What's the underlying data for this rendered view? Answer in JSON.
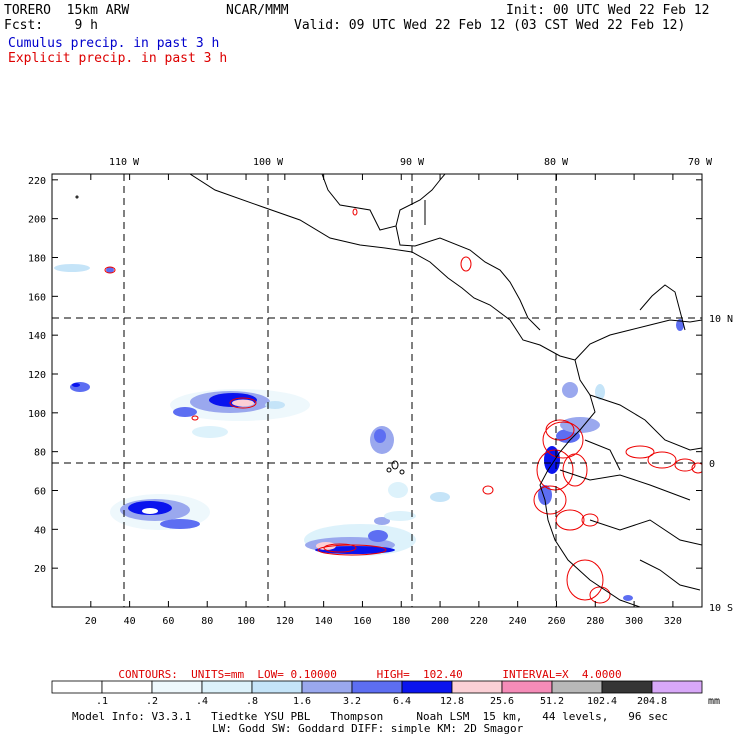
{
  "header": {
    "model": "TORERO  15km ARW",
    "org": "NCAR/MMM",
    "init": "Init: 00 UTC Wed 22 Feb 12",
    "fcst": "Fcst:    9 h",
    "valid": "Valid: 09 UTC Wed 22 Feb 12 (03 CST Wed 22 Feb 12)",
    "field1": "Cumulus precip. in past 3 h",
    "field2": "Explicit precip. in past 3 h"
  },
  "map": {
    "lon_labels": [
      "110 W",
      "100 W",
      "90 W",
      "80 W",
      "70 W"
    ],
    "lat_labels": [
      "10 N",
      "0",
      "10 S"
    ],
    "x_ticks": [
      "20",
      "40",
      "60",
      "80",
      "100",
      "120",
      "140",
      "160",
      "180",
      "200",
      "220",
      "240",
      "260",
      "280",
      "300",
      "320"
    ],
    "y_ticks": [
      "20",
      "40",
      "60",
      "80",
      "100",
      "120",
      "140",
      "160",
      "180",
      "200",
      "220"
    ]
  },
  "contours_line": "CONTOURS:  UNITS=mm  LOW= 0.10000      HIGH=  102.40      INTERVAL=X  4.0000",
  "colorbar": {
    "labels": [
      ".1",
      ".2",
      ".4",
      ".8",
      "1.6",
      "3.2",
      "6.4",
      "12.8",
      "25.6",
      "51.2",
      "102.4",
      "204.8"
    ],
    "unit": "mm",
    "colors": [
      "#ffffff",
      "#ffffff",
      "#eef8fc",
      "#ddf2fb",
      "#c5e4f8",
      "#9aa8ee",
      "#5d6ef2",
      "#0a14ee",
      "#fbd0d6",
      "#f58cb8",
      "#b8b8b8",
      "#353535",
      "#d8a8f8"
    ]
  },
  "footer": {
    "line1": "Model Info: V3.3.1   Tiedtke YSU PBL   Thompson     Noah LSM  15 km,   44 levels,   96 sec",
    "line2": "LW: Godd SW: Goddard DIFF: simple KM: 2D Smagor"
  }
}
